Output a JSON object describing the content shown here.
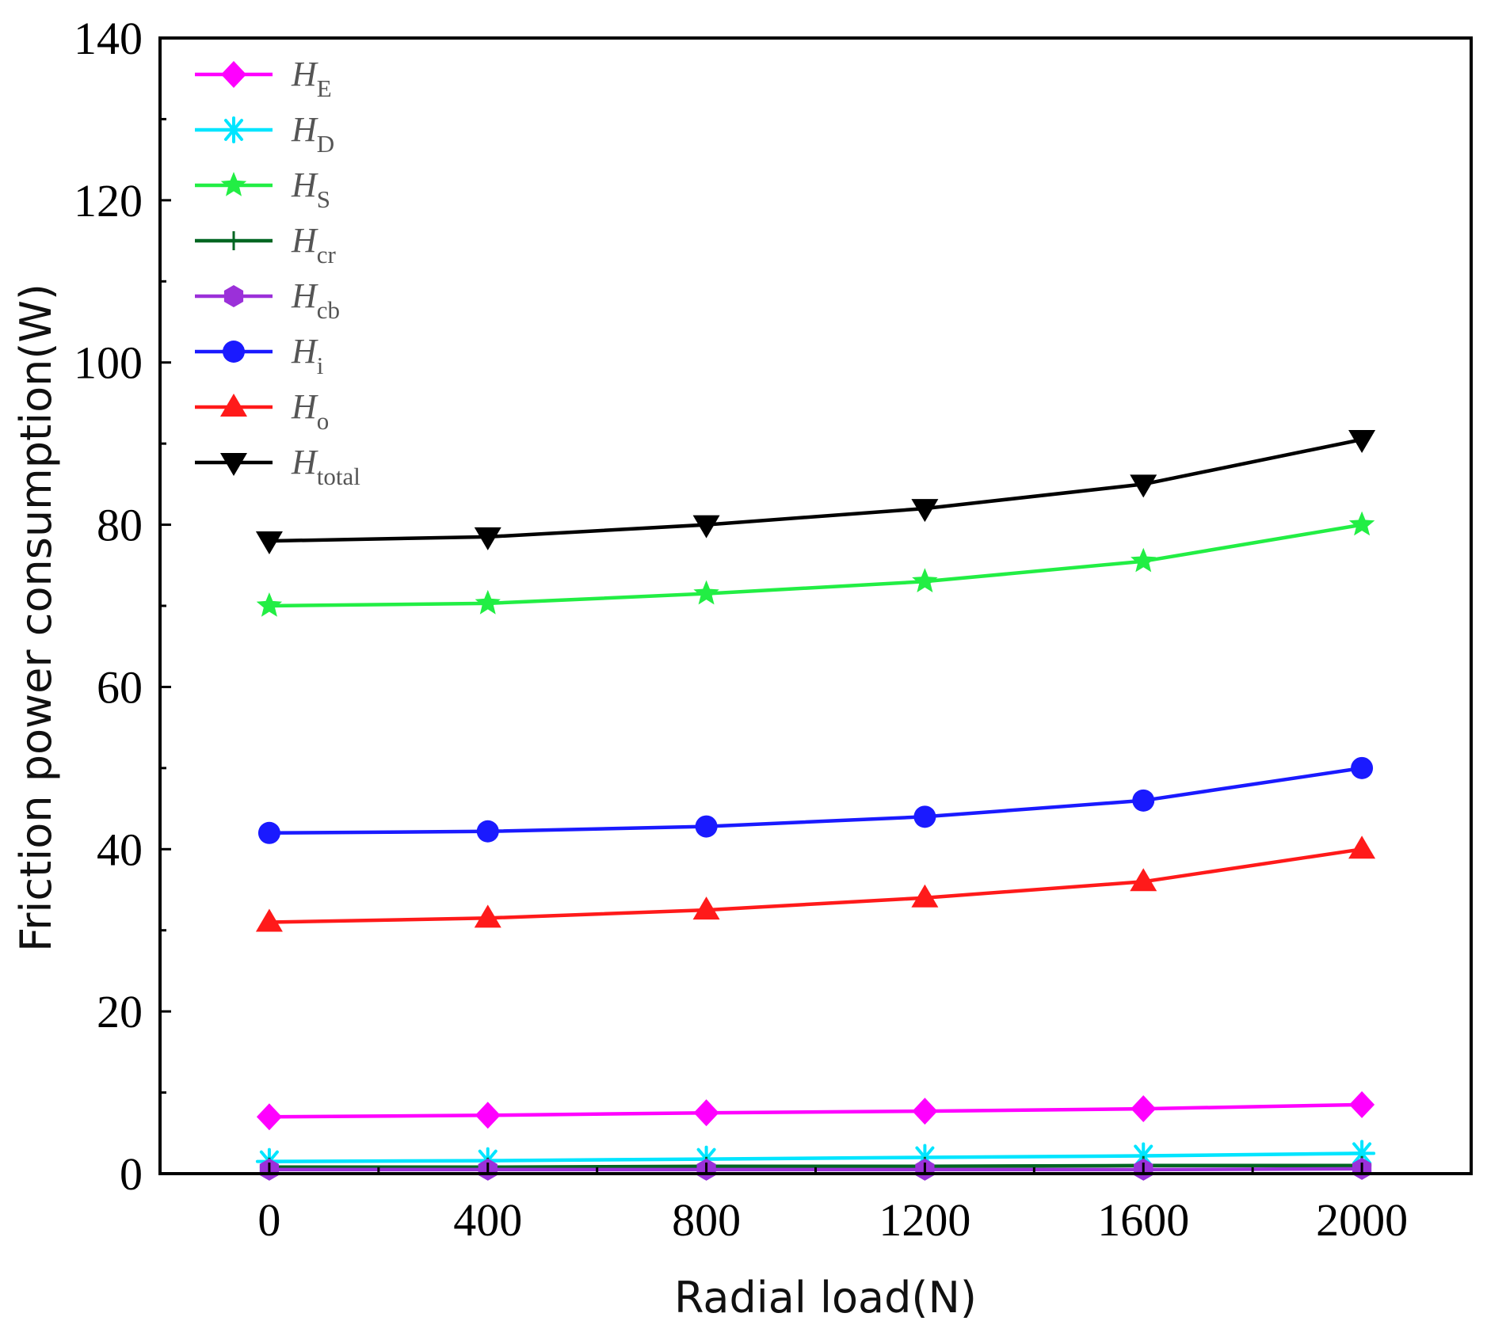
{
  "chart_data": {
    "type": "line",
    "title": "",
    "xlabel": "Radial load(N)",
    "ylabel": "Friction power consumption(W)",
    "x": [
      0,
      400,
      800,
      1200,
      1600,
      2000
    ],
    "xticks": [
      "0",
      "400",
      "800",
      "1200",
      "1600",
      "2000"
    ],
    "yticks": [
      "0",
      "20",
      "40",
      "60",
      "80",
      "100",
      "120",
      "140"
    ],
    "xlim": [
      -200,
      2200
    ],
    "ylim": [
      0,
      140
    ],
    "grid": false,
    "legend_position": "top-left",
    "series": [
      {
        "name": "H_E",
        "base": "H",
        "sub": "E",
        "marker": "diamond",
        "color": "#ff00ff",
        "values": [
          7.0,
          7.2,
          7.5,
          7.7,
          8.0,
          8.5
        ]
      },
      {
        "name": "H_D",
        "base": "H",
        "sub": "D",
        "marker": "asterisk",
        "color": "#00e5ff",
        "values": [
          1.5,
          1.6,
          1.8,
          2.0,
          2.2,
          2.5
        ]
      },
      {
        "name": "H_S",
        "base": "H",
        "sub": "S",
        "marker": "star",
        "color": "#22ee44",
        "values": [
          70.0,
          70.3,
          71.5,
          73.0,
          75.5,
          80.0
        ]
      },
      {
        "name": "H_cr",
        "base": "H",
        "sub": "cr",
        "marker": "plus",
        "color": "#006622",
        "values": [
          0.8,
          0.8,
          0.9,
          0.9,
          1.0,
          1.0
        ]
      },
      {
        "name": "H_cb",
        "base": "H",
        "sub": "cb",
        "marker": "hexagon",
        "color": "#9b30d9",
        "values": [
          0.5,
          0.5,
          0.5,
          0.5,
          0.5,
          0.6
        ]
      },
      {
        "name": "H_i",
        "base": "H",
        "sub": "i",
        "marker": "circle",
        "color": "#1a1aff",
        "values": [
          42.0,
          42.2,
          42.8,
          44.0,
          46.0,
          50.0
        ]
      },
      {
        "name": "H_o",
        "base": "H",
        "sub": "o",
        "marker": "triangle-up",
        "color": "#ff1a1a",
        "values": [
          31.0,
          31.5,
          32.5,
          34.0,
          36.0,
          40.0
        ]
      },
      {
        "name": "H_total",
        "base": "H",
        "sub": "total",
        "marker": "triangle-down",
        "color": "#000000",
        "values": [
          78.0,
          78.5,
          80.0,
          82.0,
          85.0,
          90.5
        ]
      }
    ]
  }
}
